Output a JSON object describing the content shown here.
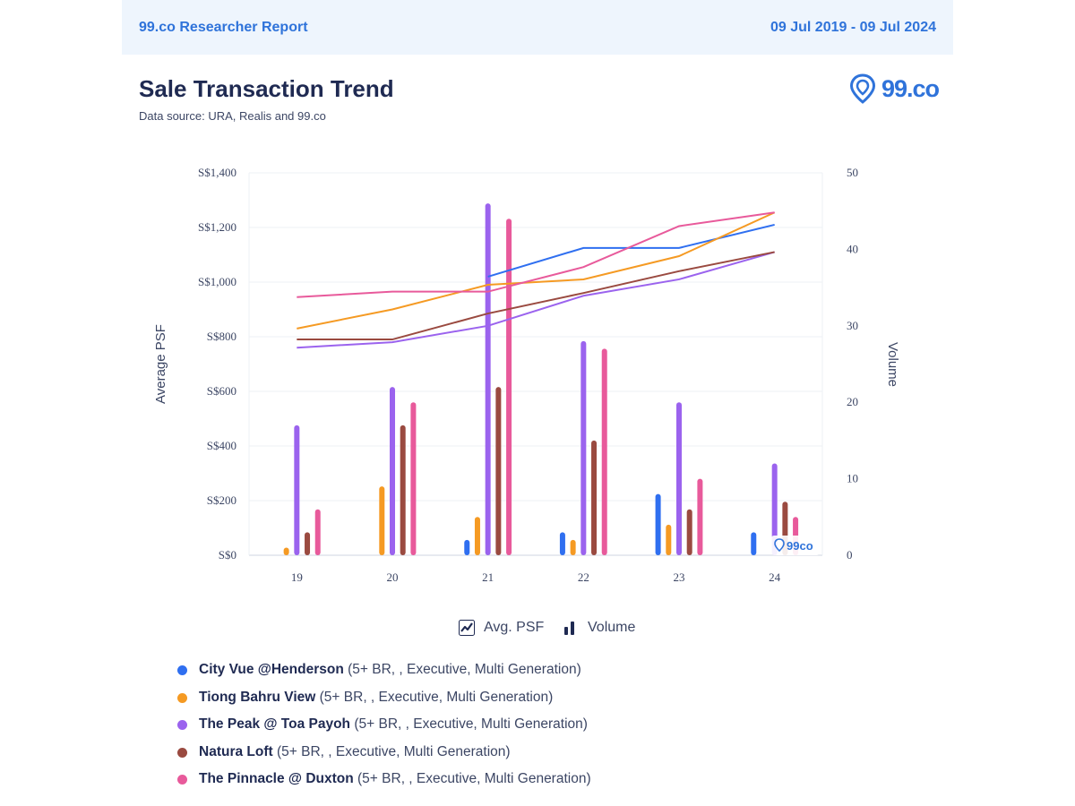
{
  "header": {
    "report_name": "99.co Researcher Report",
    "date_range": "09 Jul 2019 - 09 Jul 2024"
  },
  "title": "Sale Transaction Trend",
  "subtitle": "Data source: URA, Realis and 99.co",
  "logo": {
    "text": "99.co",
    "watermark_text": "99co"
  },
  "toggles": {
    "psf_label": "Avg. PSF",
    "volume_label": "Volume"
  },
  "legend": [
    {
      "name": "City Vue @Henderson",
      "detail": " (5+ BR, , Executive, Multi Generation)"
    },
    {
      "name": "Tiong Bahru View",
      "detail": " (5+ BR, , Executive, Multi Generation)"
    },
    {
      "name": "The Peak @ Toa Payoh",
      "detail": " (5+ BR, , Executive, Multi Generation)"
    },
    {
      "name": "Natura Loft",
      "detail": " (5+ BR, , Executive, Multi Generation)"
    },
    {
      "name": "The Pinnacle @ Duxton",
      "detail": " (5+ BR, , Executive, Multi Generation)"
    }
  ],
  "colors": {
    "city_vue": "#2f6ff0",
    "tiong_bahru": "#f59a23",
    "peak": "#9b63ee",
    "natura": "#9a4a40",
    "pinnacle": "#e85a9b",
    "brand": "#2f73da"
  },
  "chart_data": {
    "type": "bar+line",
    "categories": [
      "19",
      "20",
      "21",
      "22",
      "23",
      "24"
    ],
    "y_left": {
      "label": "Average PSF",
      "range": [
        0,
        1400
      ],
      "ticks": [
        "S$0",
        "S$200",
        "S$400",
        "S$600",
        "S$800",
        "S$1,000",
        "S$1,200",
        "S$1,400"
      ]
    },
    "y_right": {
      "label": "Volume",
      "range": [
        0,
        50
      ],
      "ticks": [
        "0",
        "10",
        "20",
        "30",
        "40",
        "50"
      ]
    },
    "series": [
      {
        "name": "City Vue @Henderson",
        "color": "#2f6ff0",
        "volume": [
          0,
          0,
          2,
          3,
          8,
          3
        ],
        "psf": [
          null,
          null,
          1020,
          1125,
          1125,
          1210
        ]
      },
      {
        "name": "Tiong Bahru View",
        "color": "#f59a23",
        "volume": [
          1,
          9,
          5,
          2,
          4,
          0
        ],
        "psf": [
          830,
          900,
          990,
          1010,
          1095,
          1255
        ]
      },
      {
        "name": "The Peak @ Toa Payoh",
        "color": "#9b63ee",
        "volume": [
          17,
          22,
          46,
          28,
          20,
          12
        ],
        "psf": [
          760,
          780,
          840,
          950,
          1010,
          1110
        ]
      },
      {
        "name": "Natura Loft",
        "color": "#9a4a40",
        "volume": [
          3,
          17,
          22,
          15,
          6,
          7
        ],
        "psf": [
          790,
          790,
          885,
          960,
          1040,
          1110
        ]
      },
      {
        "name": "The Pinnacle @ Duxton",
        "color": "#e85a9b",
        "volume": [
          6,
          20,
          44,
          27,
          10,
          5
        ],
        "psf": [
          945,
          965,
          965,
          1055,
          1205,
          1255
        ]
      }
    ]
  }
}
